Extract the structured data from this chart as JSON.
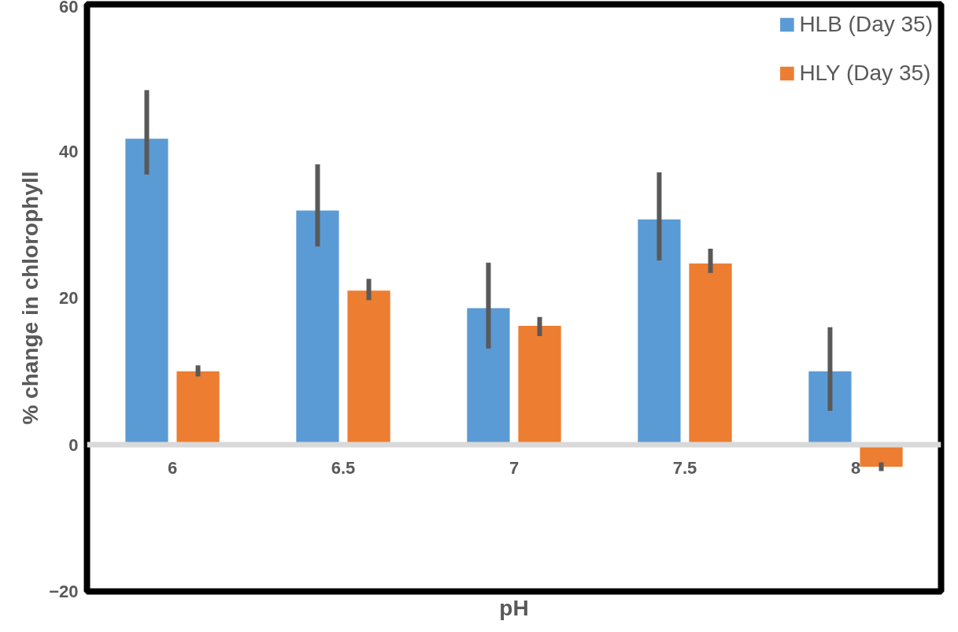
{
  "chart_data": {
    "type": "bar",
    "xlabel": "pH",
    "ylabel": "% change in chlorophyll",
    "categories": [
      "6",
      "6.5",
      "7",
      "7.5",
      "8"
    ],
    "series": [
      {
        "name": "HLB (Day 35)",
        "color": "#5b9bd5",
        "values": [
          41.7,
          31.9,
          18.6,
          30.7,
          10.0
        ],
        "errors": [
          [
            36.8,
            48.3
          ],
          [
            27.0,
            38.2
          ],
          [
            13.1,
            24.8
          ],
          [
            25.1,
            37.1
          ],
          [
            4.6,
            16.0
          ]
        ]
      },
      {
        "name": "HLY (Day 35)",
        "color": "#ed7d31",
        "values": [
          10.0,
          21.0,
          16.2,
          24.7,
          -3.0
        ],
        "errors": [
          [
            9.3,
            10.8
          ],
          [
            19.7,
            22.6
          ],
          [
            14.8,
            17.4
          ],
          [
            23.4,
            26.7
          ],
          [
            -3.6,
            -2.4
          ]
        ]
      }
    ],
    "ylim": [
      -20,
      60
    ],
    "yticks": [
      -20,
      0,
      20,
      40,
      60
    ],
    "grid": false,
    "legend": "top right"
  }
}
